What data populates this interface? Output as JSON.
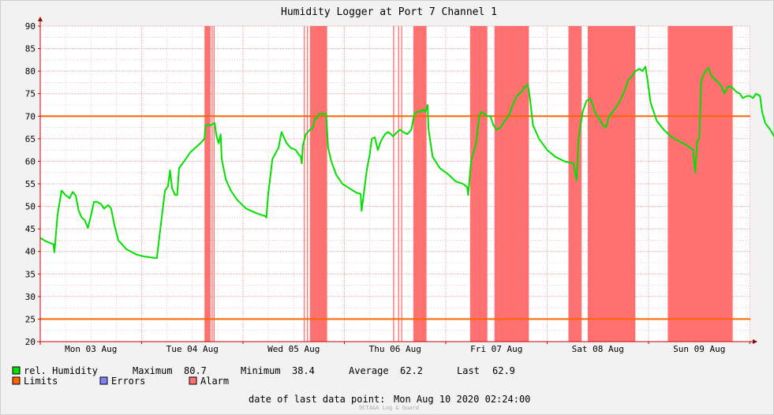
{
  "chart_data": {
    "type": "line",
    "title": "Humidity Logger at Port 7 Channel 1",
    "ylim": [
      20,
      90
    ],
    "xlim": [
      0,
      7
    ],
    "y_ticks": [
      20,
      25,
      30,
      35,
      40,
      45,
      50,
      55,
      60,
      65,
      70,
      75,
      80,
      85,
      90
    ],
    "x_ticks": [
      {
        "x": 0.5,
        "label": "Mon 03 Aug"
      },
      {
        "x": 1.5,
        "label": "Tue 04 Aug"
      },
      {
        "x": 2.5,
        "label": "Wed 05 Aug"
      },
      {
        "x": 3.5,
        "label": "Thu 06 Aug"
      },
      {
        "x": 4.5,
        "label": "Fri 07 Aug"
      },
      {
        "x": 5.5,
        "label": "Sat 08 Aug"
      },
      {
        "x": 6.5,
        "label": "Sun 09 Aug"
      }
    ],
    "grid": true,
    "limits": [
      25,
      70
    ],
    "alarm_bands": [
      [
        1.62,
        1.68
      ],
      [
        1.69,
        1.7
      ],
      [
        1.71,
        1.72
      ],
      [
        2.6,
        2.61
      ],
      [
        2.63,
        2.64
      ],
      [
        2.66,
        2.83
      ],
      [
        3.48,
        3.49
      ],
      [
        3.53,
        3.54
      ],
      [
        3.56,
        3.57
      ],
      [
        3.68,
        3.81
      ],
      [
        4.24,
        4.41
      ],
      [
        4.48,
        4.82
      ],
      [
        5.21,
        5.34
      ],
      [
        5.4,
        5.87
      ],
      [
        6.19,
        6.83
      ]
    ],
    "series": [
      {
        "name": "rel. Humidity",
        "color": "#00e000",
        "points": [
          [
            0.0,
            43.0
          ],
          [
            0.06,
            42.2
          ],
          [
            0.13,
            41.6
          ],
          [
            0.14,
            39.8
          ],
          [
            0.17,
            48.0
          ],
          [
            0.21,
            53.5
          ],
          [
            0.25,
            52.5
          ],
          [
            0.29,
            51.8
          ],
          [
            0.32,
            53.2
          ],
          [
            0.35,
            52.4
          ],
          [
            0.38,
            49.0
          ],
          [
            0.41,
            47.5
          ],
          [
            0.44,
            46.9
          ],
          [
            0.47,
            45.2
          ],
          [
            0.5,
            48.0
          ],
          [
            0.53,
            51.0
          ],
          [
            0.56,
            51.0
          ],
          [
            0.6,
            50.5
          ],
          [
            0.63,
            49.5
          ],
          [
            0.67,
            50.3
          ],
          [
            0.7,
            49.5
          ],
          [
            0.73,
            46.0
          ],
          [
            0.77,
            42.5
          ],
          [
            0.85,
            40.5
          ],
          [
            0.95,
            39.3
          ],
          [
            1.02,
            38.9
          ],
          [
            1.15,
            38.5
          ],
          [
            1.19,
            46.0
          ],
          [
            1.23,
            53.5
          ],
          [
            1.26,
            54.5
          ],
          [
            1.28,
            58.0
          ],
          [
            1.3,
            54.0
          ],
          [
            1.33,
            52.5
          ],
          [
            1.35,
            52.5
          ],
          [
            1.37,
            58.5
          ],
          [
            1.42,
            60.0
          ],
          [
            1.48,
            62.0
          ],
          [
            1.53,
            63.0
          ],
          [
            1.58,
            64.0
          ],
          [
            1.62,
            65.0
          ],
          [
            1.63,
            68.0
          ],
          [
            1.68,
            68.0
          ],
          [
            1.72,
            68.5
          ],
          [
            1.74,
            65.5
          ],
          [
            1.76,
            64.0
          ],
          [
            1.78,
            66.0
          ],
          [
            1.79,
            60.5
          ],
          [
            1.83,
            56.0
          ],
          [
            1.88,
            53.5
          ],
          [
            1.94,
            51.5
          ],
          [
            2.03,
            49.5
          ],
          [
            2.13,
            48.5
          ],
          [
            2.22,
            47.8
          ],
          [
            2.23,
            47.5
          ],
          [
            2.25,
            53.0
          ],
          [
            2.29,
            60.5
          ],
          [
            2.35,
            63.0
          ],
          [
            2.38,
            66.5
          ],
          [
            2.41,
            65.0
          ],
          [
            2.43,
            64.0
          ],
          [
            2.47,
            63.0
          ],
          [
            2.52,
            62.5
          ],
          [
            2.55,
            61.5
          ],
          [
            2.57,
            61.0
          ],
          [
            2.58,
            59.5
          ],
          [
            2.59,
            63.5
          ],
          [
            2.62,
            66.0
          ],
          [
            2.66,
            67.0
          ],
          [
            2.69,
            67.5
          ],
          [
            2.71,
            69.5
          ],
          [
            2.73,
            69.5
          ],
          [
            2.75,
            70.5
          ],
          [
            2.79,
            70.5
          ],
          [
            2.82,
            70.5
          ],
          [
            2.84,
            63.0
          ],
          [
            2.87,
            60.0
          ],
          [
            2.92,
            57.0
          ],
          [
            2.98,
            55.0
          ],
          [
            3.05,
            54.0
          ],
          [
            3.12,
            53.0
          ],
          [
            3.16,
            52.8
          ],
          [
            3.17,
            49.0
          ],
          [
            3.19,
            52.5
          ],
          [
            3.22,
            58.0
          ],
          [
            3.25,
            61.5
          ],
          [
            3.27,
            65.0
          ],
          [
            3.3,
            65.3
          ],
          [
            3.33,
            62.5
          ],
          [
            3.36,
            64.5
          ],
          [
            3.4,
            66.0
          ],
          [
            3.43,
            66.5
          ],
          [
            3.46,
            66.0
          ],
          [
            3.48,
            65.5
          ],
          [
            3.52,
            66.5
          ],
          [
            3.55,
            67.0
          ],
          [
            3.58,
            66.5
          ],
          [
            3.62,
            66.0
          ],
          [
            3.66,
            67.0
          ],
          [
            3.69,
            70.5
          ],
          [
            3.72,
            71.0
          ],
          [
            3.75,
            71.0
          ],
          [
            3.77,
            71.5
          ],
          [
            3.8,
            71.0
          ],
          [
            3.82,
            72.5
          ],
          [
            3.83,
            67.0
          ],
          [
            3.87,
            61.0
          ],
          [
            3.94,
            58.5
          ],
          [
            4.03,
            57.0
          ],
          [
            4.1,
            55.5
          ],
          [
            4.17,
            55.0
          ],
          [
            4.21,
            54.3
          ],
          [
            4.22,
            52.5
          ],
          [
            4.25,
            60.0
          ],
          [
            4.3,
            64.0
          ],
          [
            4.33,
            70.0
          ],
          [
            4.35,
            71.0
          ],
          [
            4.38,
            70.5
          ],
          [
            4.41,
            70.0
          ],
          [
            4.44,
            70.0
          ],
          [
            4.47,
            68.0
          ],
          [
            4.5,
            67.0
          ],
          [
            4.54,
            67.5
          ],
          [
            4.58,
            69.0
          ],
          [
            4.62,
            70.0
          ],
          [
            4.66,
            72.5
          ],
          [
            4.7,
            74.5
          ],
          [
            4.75,
            75.5
          ],
          [
            4.78,
            76.5
          ],
          [
            4.81,
            77.0
          ],
          [
            4.83,
            74.0
          ],
          [
            4.86,
            68.0
          ],
          [
            4.92,
            65.0
          ],
          [
            5.0,
            62.5
          ],
          [
            5.08,
            61.0
          ],
          [
            5.17,
            60.0
          ],
          [
            5.26,
            59.5
          ],
          [
            5.29,
            55.8
          ],
          [
            5.31,
            65.0
          ],
          [
            5.35,
            71.0
          ],
          [
            5.39,
            73.5
          ],
          [
            5.43,
            73.8
          ],
          [
            5.47,
            71.0
          ],
          [
            5.51,
            69.5
          ],
          [
            5.55,
            68.0
          ],
          [
            5.58,
            67.5
          ],
          [
            5.61,
            70.0
          ],
          [
            5.65,
            71.0
          ],
          [
            5.68,
            72.0
          ],
          [
            5.72,
            73.5
          ],
          [
            5.76,
            75.5
          ],
          [
            5.8,
            78.0
          ],
          [
            5.84,
            79.0
          ],
          [
            5.87,
            80.0
          ],
          [
            5.91,
            80.5
          ],
          [
            5.94,
            80.0
          ],
          [
            5.97,
            81.0
          ],
          [
            5.99,
            78.0
          ],
          [
            6.02,
            73.0
          ],
          [
            6.08,
            69.0
          ],
          [
            6.15,
            67.0
          ],
          [
            6.22,
            65.5
          ],
          [
            6.3,
            64.5
          ],
          [
            6.38,
            63.5
          ],
          [
            6.44,
            62.5
          ],
          [
            6.46,
            57.5
          ],
          [
            6.48,
            64.5
          ],
          [
            6.5,
            65.0
          ],
          [
            6.52,
            78.0
          ],
          [
            6.56,
            80.0
          ],
          [
            6.59,
            80.7
          ],
          [
            6.62,
            79.0
          ],
          [
            6.66,
            78.0
          ],
          [
            6.69,
            77.5
          ],
          [
            6.72,
            76.5
          ],
          [
            6.75,
            75.0
          ],
          [
            6.78,
            76.5
          ],
          [
            6.82,
            76.5
          ],
          [
            6.86,
            75.5
          ],
          [
            6.9,
            75.0
          ],
          [
            6.93,
            74.0
          ],
          [
            6.97,
            74.5
          ],
          [
            7.0,
            74.5
          ],
          [
            7.03,
            74.0
          ],
          [
            7.06,
            75.0
          ],
          [
            7.1,
            74.5
          ],
          [
            7.12,
            71.0
          ],
          [
            7.15,
            68.5
          ],
          [
            7.2,
            67.0
          ],
          [
            7.24,
            65.5
          ],
          [
            7.28,
            64.0
          ],
          [
            7.3,
            62.9
          ]
        ]
      }
    ],
    "legend": {
      "placement": "bottom-left",
      "humidity_label": "rel. Humidity",
      "maximum_label": "Maximum",
      "maximum_value": "80.7",
      "minimum_label": "Minimum",
      "minimum_value": "38.4",
      "average_label": "Average",
      "average_value": "62.2",
      "last_label": "Last",
      "last_value": "62.9",
      "limits_label": "Limits",
      "errors_label": "Errors",
      "alarm_label": "Alarm"
    },
    "footer": {
      "date_label": "date of last data point:",
      "date_value": "Mon Aug 10 2020 02:24:00",
      "credit": "OCTA&A Log & Guard"
    },
    "colors": {
      "humidity": "#00e000",
      "limits": "#ff6600",
      "errors": "#7f7fff",
      "alarm": "#ff7070",
      "background": "#f2f2f2",
      "plot_background": "#ffffff",
      "grid": "#e6a8a8"
    }
  }
}
